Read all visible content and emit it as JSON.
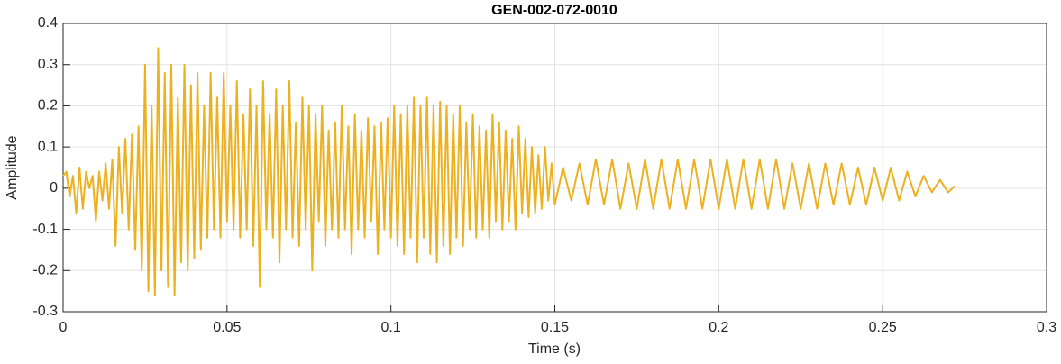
{
  "chart_data": {
    "type": "line",
    "title": "GEN-002-072-0010",
    "x_label": "Time (s)",
    "y_label": "Amplitude",
    "xlim": [
      0,
      0.3
    ],
    "xticks": [
      0,
      0.05,
      0.1,
      0.15,
      0.2,
      0.25,
      0.3
    ],
    "ylim": [
      -0.3,
      0.4
    ],
    "yticks": [
      -0.3,
      -0.2,
      -0.1,
      0,
      0.1,
      0.2,
      0.3,
      0.4
    ],
    "grid": true,
    "series": [
      {
        "name": "Amplitude",
        "color": "#EDB120",
        "x": [
          0,
          0.001,
          0.002,
          0.003,
          0.004,
          0.005,
          0.006,
          0.007,
          0.008,
          0.009,
          0.01,
          0.011,
          0.012,
          0.013,
          0.014,
          0.015,
          0.016,
          0.017,
          0.018,
          0.019,
          0.02,
          0.021,
          0.022,
          0.023,
          0.024,
          0.025,
          0.026,
          0.027,
          0.028,
          0.029,
          0.03,
          0.031,
          0.032,
          0.033,
          0.034,
          0.035,
          0.036,
          0.037,
          0.038,
          0.039,
          0.04,
          0.041,
          0.042,
          0.043,
          0.044,
          0.045,
          0.046,
          0.047,
          0.048,
          0.049,
          0.05,
          0.051,
          0.052,
          0.053,
          0.054,
          0.055,
          0.056,
          0.057,
          0.058,
          0.059,
          0.06,
          0.061,
          0.062,
          0.063,
          0.064,
          0.065,
          0.066,
          0.067,
          0.068,
          0.069,
          0.07,
          0.071,
          0.072,
          0.073,
          0.074,
          0.075,
          0.076,
          0.077,
          0.078,
          0.079,
          0.08,
          0.081,
          0.082,
          0.083,
          0.084,
          0.085,
          0.086,
          0.087,
          0.088,
          0.089,
          0.09,
          0.091,
          0.092,
          0.093,
          0.094,
          0.095,
          0.096,
          0.097,
          0.098,
          0.099,
          0.1,
          0.101,
          0.102,
          0.103,
          0.104,
          0.105,
          0.106,
          0.107,
          0.108,
          0.109,
          0.11,
          0.111,
          0.112,
          0.113,
          0.114,
          0.115,
          0.116,
          0.117,
          0.118,
          0.119,
          0.12,
          0.121,
          0.122,
          0.123,
          0.124,
          0.125,
          0.126,
          0.127,
          0.128,
          0.129,
          0.13,
          0.131,
          0.132,
          0.133,
          0.134,
          0.135,
          0.136,
          0.137,
          0.138,
          0.139,
          0.14,
          0.141,
          0.142,
          0.143,
          0.144,
          0.145,
          0.146,
          0.147,
          0.148,
          0.149,
          0.15,
          0.1525,
          0.155,
          0.1575,
          0.16,
          0.1625,
          0.165,
          0.1675,
          0.17,
          0.1725,
          0.175,
          0.1775,
          0.18,
          0.1825,
          0.185,
          0.1875,
          0.19,
          0.1925,
          0.195,
          0.1975,
          0.2,
          0.2025,
          0.205,
          0.2075,
          0.21,
          0.2125,
          0.215,
          0.2175,
          0.22,
          0.2225,
          0.225,
          0.2275,
          0.23,
          0.2325,
          0.235,
          0.2375,
          0.24,
          0.2425,
          0.245,
          0.2475,
          0.25,
          0.2525,
          0.255,
          0.2575,
          0.26,
          0.2625,
          0.265,
          0.2675,
          0.27,
          0.272
        ],
        "values": [
          0.03,
          0.04,
          -0.02,
          0.03,
          -0.06,
          0.05,
          -0.05,
          0.04,
          0.0,
          0.03,
          -0.08,
          0.04,
          -0.03,
          0.06,
          -0.05,
          0.07,
          -0.14,
          0.1,
          -0.06,
          0.12,
          -0.1,
          0.13,
          -0.15,
          0.15,
          -0.2,
          0.3,
          -0.25,
          0.2,
          -0.26,
          0.34,
          -0.2,
          0.28,
          -0.24,
          0.3,
          -0.26,
          0.22,
          -0.18,
          0.3,
          -0.2,
          0.25,
          -0.17,
          0.28,
          -0.15,
          0.2,
          -0.12,
          0.28,
          -0.1,
          0.22,
          -0.12,
          0.28,
          -0.08,
          0.2,
          -0.1,
          0.26,
          -0.12,
          0.18,
          -0.1,
          0.24,
          -0.14,
          0.2,
          -0.24,
          0.26,
          -0.1,
          0.18,
          -0.12,
          0.24,
          -0.18,
          0.2,
          -0.1,
          0.26,
          -0.12,
          0.16,
          -0.14,
          0.22,
          -0.1,
          0.2,
          -0.2,
          0.18,
          -0.08,
          0.2,
          -0.14,
          0.14,
          -0.1,
          0.16,
          -0.12,
          0.2,
          -0.1,
          0.15,
          -0.16,
          0.18,
          -0.1,
          0.14,
          -0.12,
          0.17,
          -0.08,
          0.15,
          -0.16,
          0.16,
          -0.1,
          0.17,
          -0.12,
          0.2,
          -0.14,
          0.18,
          -0.16,
          0.2,
          -0.12,
          0.22,
          -0.18,
          0.2,
          -0.12,
          0.22,
          -0.16,
          0.2,
          -0.18,
          0.21,
          -0.14,
          0.2,
          -0.16,
          0.18,
          -0.12,
          0.2,
          -0.14,
          0.16,
          -0.1,
          0.18,
          -0.12,
          0.15,
          -0.1,
          0.14,
          -0.12,
          0.18,
          -0.08,
          0.16,
          -0.1,
          0.14,
          -0.08,
          0.12,
          -0.1,
          0.15,
          -0.06,
          0.12,
          -0.07,
          0.1,
          -0.06,
          0.08,
          -0.05,
          0.1,
          -0.03,
          0.06,
          -0.04,
          0.05,
          -0.03,
          0.06,
          -0.04,
          0.07,
          -0.04,
          0.07,
          -0.05,
          0.06,
          -0.05,
          0.07,
          -0.05,
          0.07,
          -0.05,
          0.07,
          -0.05,
          0.07,
          -0.05,
          0.07,
          -0.05,
          0.07,
          -0.05,
          0.07,
          -0.05,
          0.07,
          -0.05,
          0.07,
          -0.05,
          0.06,
          -0.05,
          0.06,
          -0.05,
          0.06,
          -0.04,
          0.06,
          -0.04,
          0.05,
          -0.04,
          0.05,
          -0.03,
          0.05,
          -0.03,
          0.04,
          -0.02,
          0.03,
          -0.01,
          0.02,
          -0.01,
          0.005
        ]
      }
    ]
  }
}
